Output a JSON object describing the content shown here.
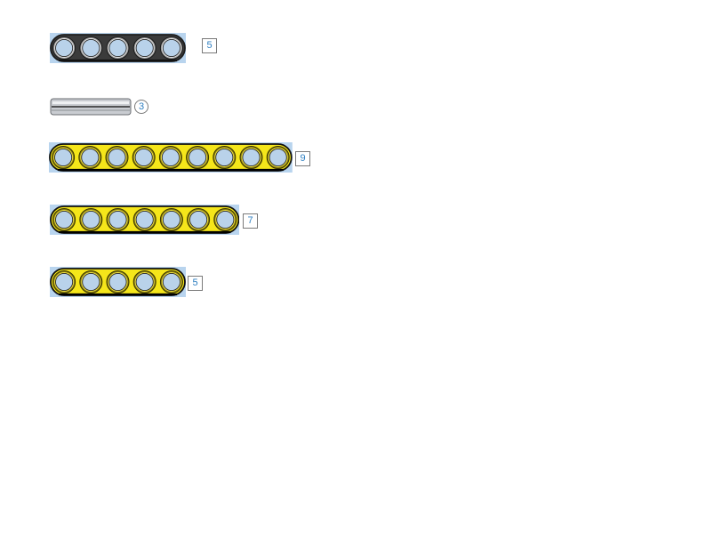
{
  "colors": {
    "background": "#ffffff",
    "highlight": "#b8d4ee",
    "dark_beam": "#3b3b3b",
    "yellow_beam": "#f5e61a",
    "axle": "#c9ccd1",
    "hole_fill": "#b9d2ea",
    "callout_text": "#2f7fc1"
  },
  "parts": [
    {
      "id": "beam-dark-5",
      "kind": "beam",
      "color": "dark",
      "holes": 5,
      "callout": {
        "text": "5",
        "shape": "square"
      },
      "icon": "technic-beam-icon"
    },
    {
      "id": "axle-3",
      "kind": "axle",
      "color": "gray",
      "callout": {
        "text": "3",
        "shape": "circle"
      },
      "icon": "technic-axle-icon"
    },
    {
      "id": "beam-yellow-9",
      "kind": "beam",
      "color": "yellow",
      "holes": 9,
      "callout": {
        "text": "9",
        "shape": "square"
      },
      "icon": "technic-beam-icon"
    },
    {
      "id": "beam-yellow-7",
      "kind": "beam",
      "color": "yellow",
      "holes": 7,
      "callout": {
        "text": "7",
        "shape": "square"
      },
      "icon": "technic-beam-icon"
    },
    {
      "id": "beam-yellow-5",
      "kind": "beam",
      "color": "yellow",
      "holes": 5,
      "callout": {
        "text": "5",
        "shape": "square"
      },
      "icon": "technic-beam-icon"
    }
  ]
}
